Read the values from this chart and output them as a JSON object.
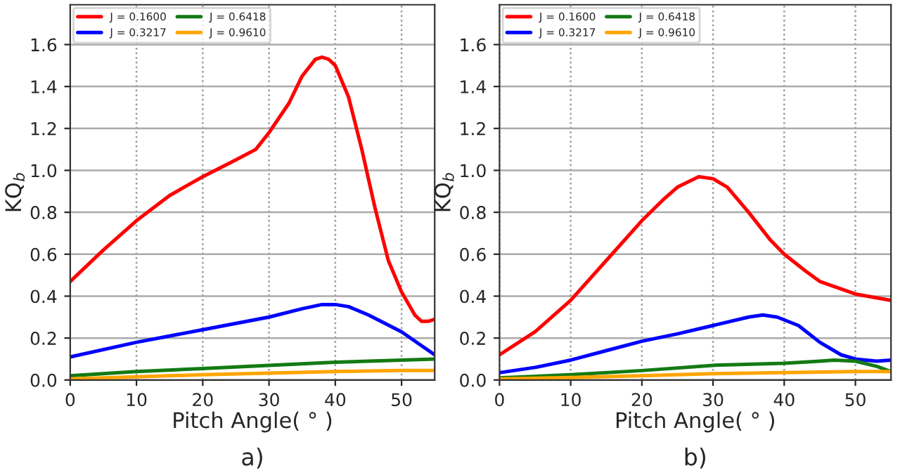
{
  "chart_data": [
    {
      "type": "line",
      "xlabel": "Pitch Angle( ° )",
      "ylabel": "KQ$_{b}$",
      "annotations": [
        "a)"
      ],
      "xlim": [
        0,
        55
      ],
      "ylim": [
        0,
        1.79
      ],
      "xticks": [
        0,
        10,
        20,
        30,
        40,
        50
      ],
      "yticks": [
        {
          "value": 0,
          "label": "0.0"
        },
        {
          "value": 0.2,
          "label": "0.2"
        },
        {
          "value": 0.4,
          "label": "0.4"
        },
        {
          "value": 0.6,
          "label": "0.6"
        },
        {
          "value": 0.8,
          "label": "0.8"
        },
        {
          "value": 1.0,
          "label": "1.0"
        },
        {
          "value": 1.2,
          "label": "1.2"
        },
        {
          "value": 1.4,
          "label": "1.4"
        },
        {
          "value": 1.6,
          "label": "1.6"
        }
      ],
      "grid": true,
      "legend": "top left",
      "marker": "none",
      "line_style": "solid",
      "series": [
        {
          "name": "J = 0.1600",
          "color": "#ff0000",
          "x": [
            0,
            5,
            10,
            15,
            20,
            25,
            28,
            30,
            33,
            35,
            37,
            38,
            39,
            40,
            42,
            44,
            46,
            48,
            50,
            52,
            53,
            54,
            55
          ],
          "values": [
            0.47,
            0.62,
            0.76,
            0.88,
            0.97,
            1.05,
            1.1,
            1.18,
            1.32,
            1.45,
            1.53,
            1.54,
            1.53,
            1.5,
            1.35,
            1.1,
            0.82,
            0.57,
            0.42,
            0.31,
            0.28,
            0.28,
            0.29
          ]
        },
        {
          "name": "J = 0.3217",
          "color": "#0000ff",
          "x": [
            0,
            10,
            20,
            25,
            30,
            35,
            38,
            40,
            42,
            45,
            50,
            55
          ],
          "values": [
            0.11,
            0.18,
            0.24,
            0.27,
            0.3,
            0.34,
            0.36,
            0.36,
            0.35,
            0.31,
            0.23,
            0.12
          ]
        },
        {
          "name": "J = 0.6418",
          "color": "#137a13",
          "x": [
            0,
            10,
            20,
            30,
            40,
            50,
            55
          ],
          "values": [
            0.02,
            0.04,
            0.055,
            0.07,
            0.085,
            0.095,
            0.1
          ]
        },
        {
          "name": "J = 0.9610",
          "color": "#ffa500",
          "x": [
            0,
            10,
            20,
            30,
            40,
            50,
            55
          ],
          "values": [
            0.005,
            0.015,
            0.025,
            0.033,
            0.04,
            0.045,
            0.045
          ]
        }
      ]
    },
    {
      "type": "line",
      "xlabel": "Pitch Angle( ° )",
      "ylabel": "KQ$_{b}$",
      "annotations": [
        "b)"
      ],
      "xlim": [
        0,
        55
      ],
      "ylim": [
        0,
        1.79
      ],
      "xticks": [
        0,
        10,
        20,
        30,
        40,
        50
      ],
      "yticks": [
        {
          "value": 0,
          "label": "0.0"
        },
        {
          "value": 0.2,
          "label": "0.2"
        },
        {
          "value": 0.4,
          "label": "0.4"
        },
        {
          "value": 0.6,
          "label": "0.6"
        },
        {
          "value": 0.8,
          "label": "0.8"
        },
        {
          "value": 1.0,
          "label": "1.0"
        },
        {
          "value": 1.2,
          "label": "1.2"
        },
        {
          "value": 1.4,
          "label": "1.4"
        },
        {
          "value": 1.6,
          "label": "1.6"
        }
      ],
      "grid": true,
      "legend": "top left",
      "marker": "none",
      "line_style": "solid",
      "series": [
        {
          "name": "J = 0.1600",
          "color": "#ff0000",
          "x": [
            0,
            5,
            10,
            15,
            20,
            23,
            25,
            28,
            30,
            32,
            35,
            38,
            40,
            43,
            45,
            50,
            55
          ],
          "values": [
            0.12,
            0.23,
            0.38,
            0.57,
            0.76,
            0.86,
            0.92,
            0.97,
            0.96,
            0.92,
            0.8,
            0.67,
            0.6,
            0.52,
            0.47,
            0.41,
            0.38
          ]
        },
        {
          "name": "J = 0.3217",
          "color": "#0000ff",
          "x": [
            0,
            5,
            10,
            15,
            20,
            25,
            30,
            35,
            37,
            39,
            42,
            45,
            48,
            50,
            53,
            55
          ],
          "values": [
            0.035,
            0.06,
            0.095,
            0.14,
            0.185,
            0.22,
            0.26,
            0.3,
            0.31,
            0.3,
            0.26,
            0.18,
            0.12,
            0.1,
            0.09,
            0.095
          ]
        },
        {
          "name": "J = 0.6418",
          "color": "#137a13",
          "x": [
            0,
            10,
            20,
            30,
            40,
            45,
            47,
            50,
            53,
            55
          ],
          "values": [
            0.01,
            0.025,
            0.045,
            0.07,
            0.08,
            0.09,
            0.095,
            0.09,
            0.065,
            0.04
          ]
        },
        {
          "name": "J = 0.9610",
          "color": "#ffa500",
          "x": [
            0,
            10,
            20,
            30,
            40,
            50,
            55
          ],
          "values": [
            0.005,
            0.012,
            0.02,
            0.03,
            0.035,
            0.04,
            0.04
          ]
        }
      ]
    }
  ]
}
